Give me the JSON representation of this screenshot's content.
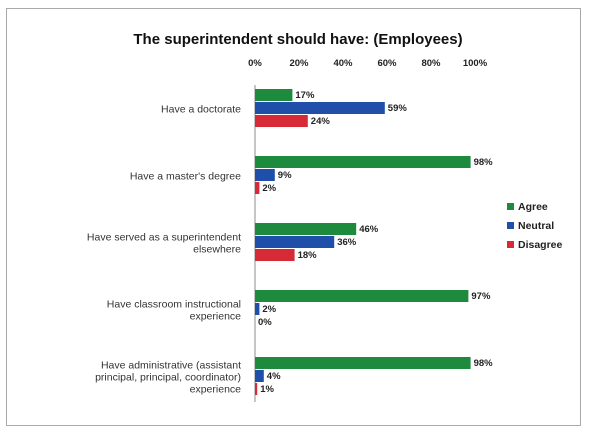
{
  "chart_data": {
    "type": "bar",
    "orientation": "horizontal",
    "title": "The superintendent should have: (Employees)",
    "xlabel": "",
    "ylabel": "",
    "xlim": [
      0,
      100
    ],
    "ticks": [
      "0%",
      "20%",
      "40%",
      "60%",
      "80%",
      "100%"
    ],
    "tick_position": "top",
    "grid": false,
    "legend_position": "right",
    "categories": [
      [
        "Have a doctorate"
      ],
      [
        "Have a master's degree"
      ],
      [
        "Have served as a superintendent",
        "elsewhere"
      ],
      [
        "Have classroom instructional",
        "experience"
      ],
      [
        "Have administrative (assistant",
        "principal, principal, coordinator)",
        "experience"
      ]
    ],
    "series": [
      {
        "name": "Agree",
        "color": "#1e8a3e",
        "values": [
          17,
          98,
          46,
          97,
          98
        ]
      },
      {
        "name": "Neutral",
        "color": "#1f4fa8",
        "values": [
          59,
          9,
          36,
          2,
          4
        ]
      },
      {
        "name": "Disagree",
        "color": "#d62a36",
        "values": [
          24,
          2,
          18,
          0,
          1
        ]
      }
    ]
  }
}
